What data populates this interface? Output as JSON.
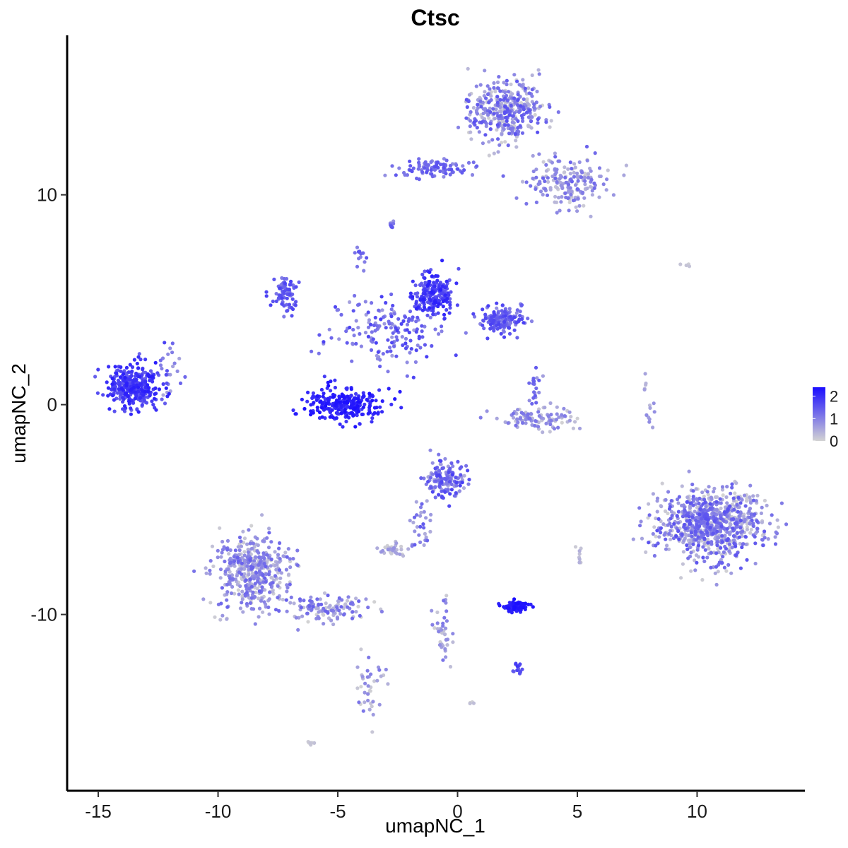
{
  "chart_data": {
    "type": "scatter",
    "title": "Ctsc",
    "xlabel": "umapNC_1",
    "ylabel": "umapNC_2",
    "xlim": [
      -16.3,
      14.5
    ],
    "ylim": [
      -18.4,
      17.6
    ],
    "x_ticks": [
      -15,
      -10,
      -5,
      0,
      5,
      10
    ],
    "x_tick_labels": [
      "-15",
      "-10",
      "-5",
      "0",
      "5",
      "10"
    ],
    "y_ticks": [
      -10,
      0,
      10
    ],
    "y_tick_labels": [
      "-10",
      "0",
      "10"
    ],
    "grid": false,
    "color_scale": {
      "low_color": "#d3d3d3",
      "high_color": "#1a0dff",
      "min": 0,
      "max": 2.4,
      "ticks": [
        0,
        1,
        2
      ],
      "tick_labels": [
        "0",
        "1",
        "2"
      ],
      "legend_position": "right"
    },
    "point_color": "expression level",
    "clusters": [
      {
        "name": "left-blob",
        "center": [
          -13.5,
          0.9
        ],
        "spread": [
          0.75,
          0.75
        ],
        "n": 320,
        "expr": [
          1.3,
          2.2
        ]
      },
      {
        "name": "left-blob-tail",
        "center": [
          -12.0,
          1.6
        ],
        "spread": [
          0.5,
          0.7
        ],
        "n": 25,
        "expr": [
          0.5,
          1.8
        ]
      },
      {
        "name": "center-cup",
        "center": [
          -4.8,
          0.0
        ],
        "spread": [
          1.1,
          0.55
        ],
        "n": 260,
        "expr": [
          1.8,
          2.4
        ]
      },
      {
        "name": "center-arms",
        "center": [
          -3.0,
          3.5
        ],
        "spread": [
          1.8,
          1.2
        ],
        "n": 160,
        "expr": [
          0.6,
          1.8
        ]
      },
      {
        "name": "center-left-lobe",
        "center": [
          -7.2,
          5.3
        ],
        "spread": [
          0.4,
          0.6
        ],
        "n": 80,
        "expr": [
          1.0,
          1.8
        ]
      },
      {
        "name": "center-right-top",
        "center": [
          -1.0,
          5.3
        ],
        "spread": [
          0.6,
          0.7
        ],
        "n": 200,
        "expr": [
          1.3,
          2.2
        ]
      },
      {
        "name": "center-right-mid",
        "center": [
          1.8,
          4.0
        ],
        "spread": [
          0.7,
          0.45
        ],
        "n": 160,
        "expr": [
          0.8,
          1.8
        ]
      },
      {
        "name": "top-cluster",
        "center": [
          2.0,
          14.0
        ],
        "spread": [
          1.1,
          1.0
        ],
        "n": 380,
        "expr": [
          0.0,
          1.6
        ]
      },
      {
        "name": "top-band",
        "center": [
          -1.0,
          11.3
        ],
        "spread": [
          1.3,
          0.3
        ],
        "n": 90,
        "expr": [
          0.8,
          1.6
        ]
      },
      {
        "name": "top-right-tail",
        "center": [
          4.6,
          10.6
        ],
        "spread": [
          1.2,
          0.9
        ],
        "n": 200,
        "expr": [
          0.0,
          1.4
        ]
      },
      {
        "name": "mid-right-arc",
        "center": [
          3.2,
          -0.7
        ],
        "spread": [
          1.3,
          0.35
        ],
        "n": 110,
        "expr": [
          0.0,
          1.2
        ]
      },
      {
        "name": "mid-right-small",
        "center": [
          3.2,
          0.7
        ],
        "spread": [
          0.25,
          0.5
        ],
        "n": 20,
        "expr": [
          0.5,
          1.5
        ]
      },
      {
        "name": "right-blob",
        "center": [
          10.6,
          -5.7
        ],
        "spread": [
          1.5,
          1.2
        ],
        "n": 820,
        "expr": [
          0.0,
          1.6
        ]
      },
      {
        "name": "lower-center",
        "center": [
          -0.5,
          -3.6
        ],
        "spread": [
          0.6,
          0.6
        ],
        "n": 160,
        "expr": [
          0.4,
          1.8
        ]
      },
      {
        "name": "lower-center-tail",
        "center": [
          -1.5,
          -5.6
        ],
        "spread": [
          0.4,
          0.8
        ],
        "n": 30,
        "expr": [
          0.4,
          1.5
        ]
      },
      {
        "name": "lower-left",
        "center": [
          -8.6,
          -8.0
        ],
        "spread": [
          1.1,
          1.2
        ],
        "n": 440,
        "expr": [
          0.0,
          1.4
        ]
      },
      {
        "name": "lower-left-tail",
        "center": [
          -5.3,
          -9.7
        ],
        "spread": [
          1.1,
          0.5
        ],
        "n": 120,
        "expr": [
          0.0,
          1.4
        ]
      },
      {
        "name": "lower-left-stem",
        "center": [
          -3.6,
          -13.5
        ],
        "spread": [
          0.4,
          1.1
        ],
        "n": 40,
        "expr": [
          0.0,
          1.2
        ]
      },
      {
        "name": "small-cluster-a",
        "center": [
          -2.7,
          -6.9
        ],
        "spread": [
          0.35,
          0.25
        ],
        "n": 35,
        "expr": [
          0.0,
          0.8
        ]
      },
      {
        "name": "bottom-dense",
        "center": [
          2.4,
          -9.6
        ],
        "spread": [
          0.45,
          0.2
        ],
        "n": 80,
        "expr": [
          2.0,
          2.4
        ]
      },
      {
        "name": "bottom-small",
        "center": [
          2.5,
          -12.6
        ],
        "spread": [
          0.2,
          0.2
        ],
        "n": 15,
        "expr": [
          1.2,
          2.0
        ]
      },
      {
        "name": "lower-stem",
        "center": [
          -0.6,
          -10.8
        ],
        "spread": [
          0.25,
          1.0
        ],
        "n": 40,
        "expr": [
          0.0,
          1.2
        ]
      },
      {
        "name": "right-strand",
        "center": [
          7.9,
          0.0
        ],
        "spread": [
          0.25,
          1.2
        ],
        "n": 14,
        "expr": [
          0.0,
          1.0
        ]
      },
      {
        "name": "top-small",
        "center": [
          -2.8,
          8.6
        ],
        "spread": [
          0.12,
          0.12
        ],
        "n": 10,
        "expr": [
          0.8,
          1.6
        ]
      },
      {
        "name": "upper-strand",
        "center": [
          -4.1,
          7.2
        ],
        "spread": [
          0.3,
          0.4
        ],
        "n": 12,
        "expr": [
          0.8,
          1.6
        ]
      },
      {
        "name": "far-right-top",
        "center": [
          9.6,
          6.7
        ],
        "spread": [
          0.2,
          0.1
        ],
        "n": 4,
        "expr": [
          0.0,
          0.3
        ]
      },
      {
        "name": "mid-right-small-b",
        "center": [
          5.1,
          -7.2
        ],
        "spread": [
          0.1,
          0.3
        ],
        "n": 8,
        "expr": [
          0.0,
          0.5
        ]
      },
      {
        "name": "bottom-dot-a",
        "center": [
          -6.1,
          -16.1
        ],
        "spread": [
          0.1,
          0.08
        ],
        "n": 6,
        "expr": [
          0.0,
          0.3
        ]
      },
      {
        "name": "bottom-dot-b",
        "center": [
          0.6,
          -14.2
        ],
        "spread": [
          0.1,
          0.08
        ],
        "n": 4,
        "expr": [
          0.0,
          0.3
        ]
      }
    ]
  }
}
